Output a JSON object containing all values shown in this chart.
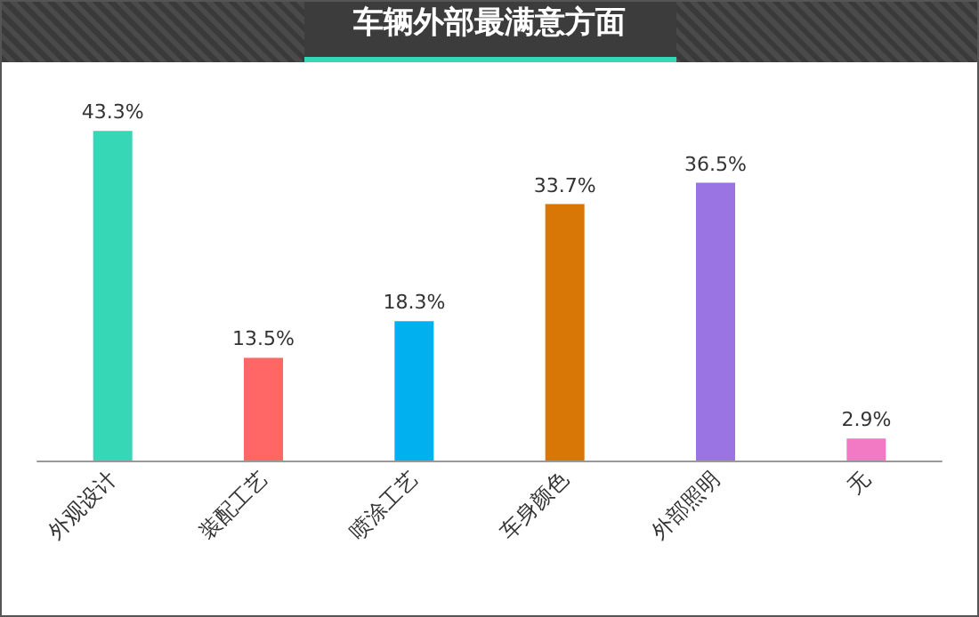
{
  "chart_data": {
    "type": "bar",
    "title": "车辆外部最满意方面",
    "categories": [
      "外观设计",
      "装配工艺",
      "喷涂工艺",
      "车身颜色",
      "外部照明",
      "无"
    ],
    "values": [
      43.3,
      13.5,
      18.3,
      33.7,
      36.5,
      2.9
    ],
    "colors": [
      "#36d7b7",
      "#ff6666",
      "#00b0ef",
      "#d97706",
      "#9b74e3",
      "#f27ac4"
    ],
    "value_labels": [
      "43.3%",
      "13.5%",
      "18.3%",
      "33.7%",
      "36.5%",
      "2.9%"
    ]
  }
}
